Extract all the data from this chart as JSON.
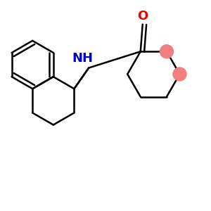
{
  "bond_color": "#000000",
  "nh_color": "#0000CC",
  "o_color": "#EE0000",
  "highlight_color": "#F08080",
  "bg_color": "#FFFFFF",
  "bond_width": 1.8,
  "font_size_nh": 13,
  "font_size_o": 13
}
